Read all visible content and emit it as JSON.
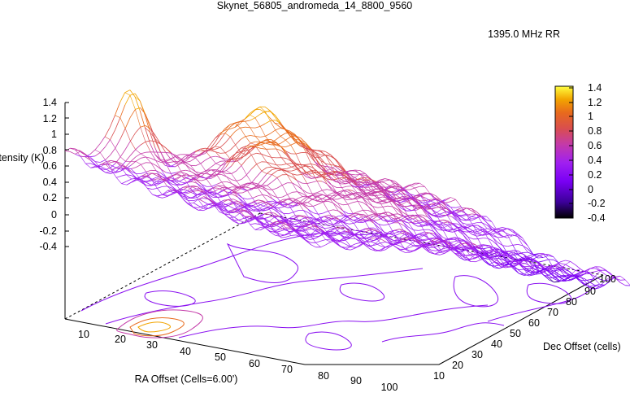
{
  "chart_data": {
    "type": "surface3d",
    "title": "Skynet_56805_andromeda_14_8800_9560",
    "legend": {
      "label": "1395.0 MHz RR",
      "color": "#a020f0",
      "position": "top-right"
    },
    "zlabel": "Intensity (K)",
    "xlabel": "RA Offset (Cells=6.00')",
    "ylabel": "Dec Offset (cells)",
    "z_ticks": [
      "1.4",
      "1.2",
      "1",
      "0.8",
      "0.6",
      "0.4",
      "0.2",
      "0",
      "-0.2",
      "-0.4"
    ],
    "x_ticks": [
      "10",
      "20",
      "30",
      "40",
      "50",
      "60",
      "70",
      "80",
      "90",
      "100"
    ],
    "y_ticks": [
      "10",
      "20",
      "30",
      "40",
      "50",
      "60",
      "70",
      "80",
      "90",
      "100"
    ],
    "colorbar_ticks": [
      "1.4",
      "1.2",
      "1",
      "0.8",
      "0.6",
      "0.4",
      "0.2",
      "0",
      "-0.2",
      "-0.4"
    ],
    "colormap": [
      "#000000",
      "#3b0098",
      "#7a00f4",
      "#a020f0",
      "#c43aa8",
      "#d94e4e",
      "#e86a1c",
      "#f2a400",
      "#ffff40"
    ],
    "xlim": [
      0,
      100
    ],
    "ylim": [
      0,
      100
    ],
    "zlim": [
      -0.4,
      1.4
    ],
    "grid": false
  }
}
